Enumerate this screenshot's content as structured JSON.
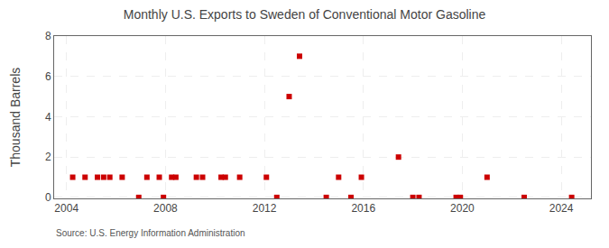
{
  "chart_data": {
    "type": "scatter",
    "title": "Monthly U.S. Exports to Sweden of Conventional Motor Gasoline",
    "ylabel": "Thousand Barrels",
    "annotations": [
      "Source: U.S. Energy Information Administration"
    ],
    "color": "#cc0000",
    "marker": "square",
    "grid": true,
    "xlim": [
      2003.5,
      2025.2
    ],
    "ylim": [
      -0.05,
      8
    ],
    "xticks": [
      2004,
      2008,
      2012,
      2016,
      2020,
      2024
    ],
    "yticks": [
      0,
      2,
      4,
      6,
      8
    ],
    "x": [
      2004.25,
      2004.75,
      2005.25,
      2005.5,
      2005.75,
      2006.25,
      2006.92,
      2007.25,
      2007.75,
      2007.92,
      2008.25,
      2008.42,
      2009.25,
      2009.5,
      2010.25,
      2010.42,
      2011.0,
      2012.08,
      2012.5,
      2013.0,
      2013.42,
      2014.5,
      2015.0,
      2015.5,
      2015.92,
      2017.42,
      2018.0,
      2018.25,
      2019.75,
      2019.92,
      2021.0,
      2022.5,
      2024.42
    ],
    "values": [
      1,
      1,
      1,
      1,
      1,
      1,
      0,
      1,
      1,
      0,
      1,
      1,
      1,
      1,
      1,
      1,
      1,
      1,
      0,
      5,
      7,
      0,
      1,
      0,
      1,
      2,
      0,
      0,
      0,
      0,
      1,
      0,
      0
    ]
  }
}
